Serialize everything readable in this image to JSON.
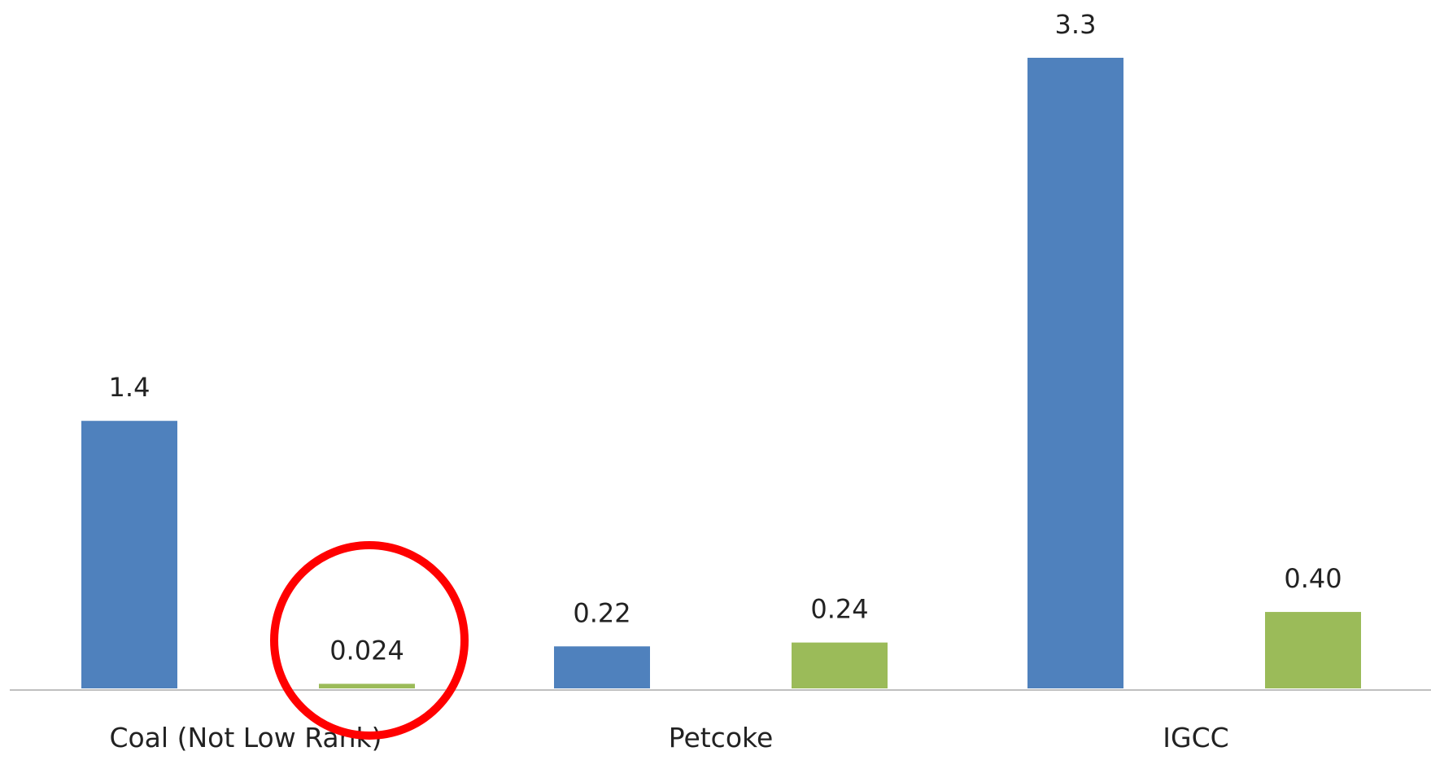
{
  "chart_data": {
    "type": "bar",
    "title": "",
    "xlabel": "",
    "ylabel": "",
    "categories": [
      "Coal (Not Low Rank)",
      "Petcoke",
      "IGCC"
    ],
    "series": [
      {
        "color": "#4f81bd",
        "values": [
          1.4,
          0.22,
          3.3
        ],
        "labels": [
          "1.4",
          "0.22",
          "3.3"
        ]
      },
      {
        "color": "#9bbb59",
        "values": [
          0.024,
          0.24,
          0.4
        ],
        "labels": [
          "0.024",
          "0.24",
          "0.40"
        ]
      }
    ],
    "ylim": [
      0,
      3.3
    ],
    "grid": false,
    "legend": "none",
    "annotation": {
      "type": "circle",
      "color": "#ff0000",
      "highlights": "Coal (Not Low Rank) second series value 0.024"
    }
  }
}
